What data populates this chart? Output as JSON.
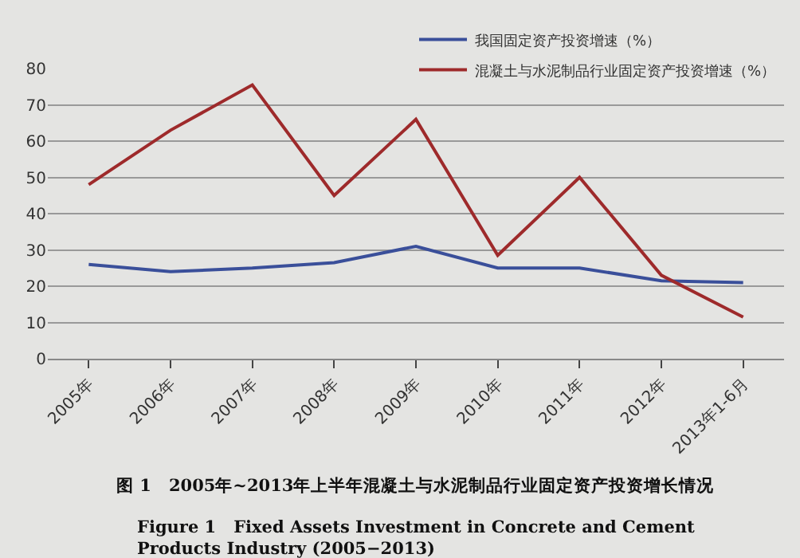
{
  "chart_data": {
    "type": "line",
    "title": "图 1　2005年~2013年上半年混凝土与水泥制品行业固定资产投资增长情况",
    "subtitle": "Figure 1　Fixed Assets Investment in Concrete and Cement Products Industry (2005−2013)",
    "categories": [
      "2005年",
      "2006年",
      "2007年",
      "2008年",
      "2009年",
      "2010年",
      "2011年",
      "2012年",
      "2013年1-6月"
    ],
    "series": [
      {
        "name": "我国固定资产投资增速（%）",
        "color": "#3a4f9a",
        "values": [
          26,
          24,
          25,
          26.5,
          31,
          25,
          25,
          21.5,
          21
        ]
      },
      {
        "name": "混凝土与水泥制品行业固定资产投资增速（%）",
        "color": "#9e2a2b",
        "values": [
          48,
          63,
          75.5,
          45,
          66,
          28.5,
          50,
          23,
          11.5
        ]
      }
    ],
    "ylim": [
      0,
      80
    ],
    "yticks": [
      0,
      10,
      20,
      30,
      40,
      50,
      60,
      70,
      80
    ],
    "grid": "y",
    "legend": "top right",
    "marker": "none",
    "line_style": "solid"
  }
}
